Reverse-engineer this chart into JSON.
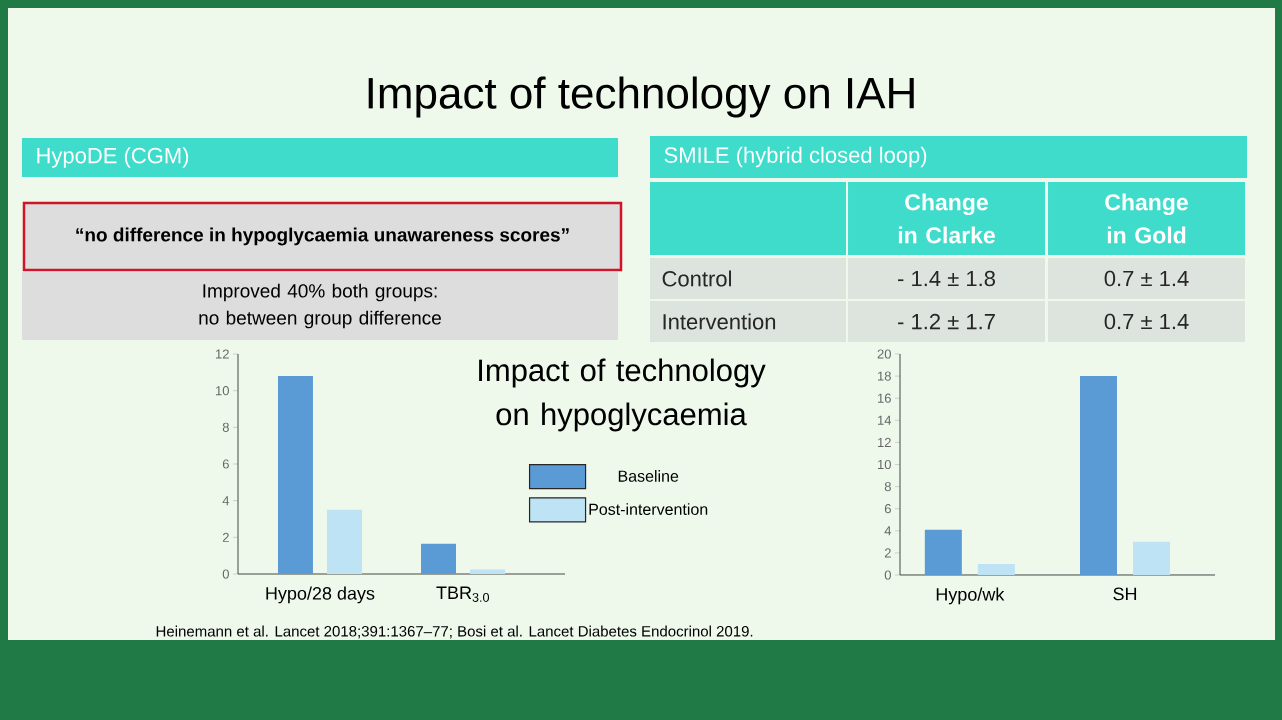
{
  "chart_data": [
    {
      "type": "other",
      "title": "Impact of technology on IAH",
      "annotations": [
        "HypoDE (CGM)",
        "“no difference in hypoglycaemia unawareness scores”",
        "Improved 40% both groups: no between group difference",
        "SMILE (hybrid closed loop)",
        "Change in Clarke",
        "Change in Gold",
        "Control",
        "- 1.4 ± 1.8",
        "0.7 ± 1.4",
        "Intervention",
        "- 1.2 ± 1.7",
        "0.7 ± 1.4",
        "Heinemann et al. Lancet 2018;391:1367–77; Bosi et al. Lancet Diabetes Endocrinol 2019."
      ]
    },
    {
      "type": "bar",
      "title": "Impact of technology on hypoglycaemia",
      "categories": [
        "Hypo/28 days",
        "TBR$_{3.0}$"
      ],
      "series": [
        {
          "name": "Baseline",
          "color": "#5b9bd5",
          "values": [
            10.8,
            1.65
          ]
        },
        {
          "name": "Post-intervention",
          "color": "#bde3f4",
          "values": [
            3.5,
            0.25
          ]
        }
      ],
      "ylim": [
        0,
        12
      ],
      "yticks": [
        0,
        2,
        4,
        6,
        8,
        10,
        12
      ],
      "grid": false,
      "legend": "right"
    },
    {
      "type": "bar",
      "categories": [
        "Hypo/wk",
        "SH"
      ],
      "series": [
        {
          "color": "#5b9bd5",
          "values": [
            4.1,
            18
          ]
        },
        {
          "color": "#bde3f4",
          "values": [
            1.0,
            3.0
          ]
        }
      ],
      "ylim": [
        0,
        20
      ],
      "yticks": [
        0,
        2,
        4,
        6,
        8,
        10,
        12,
        14,
        16,
        18,
        20
      ],
      "grid": false
    }
  ]
}
